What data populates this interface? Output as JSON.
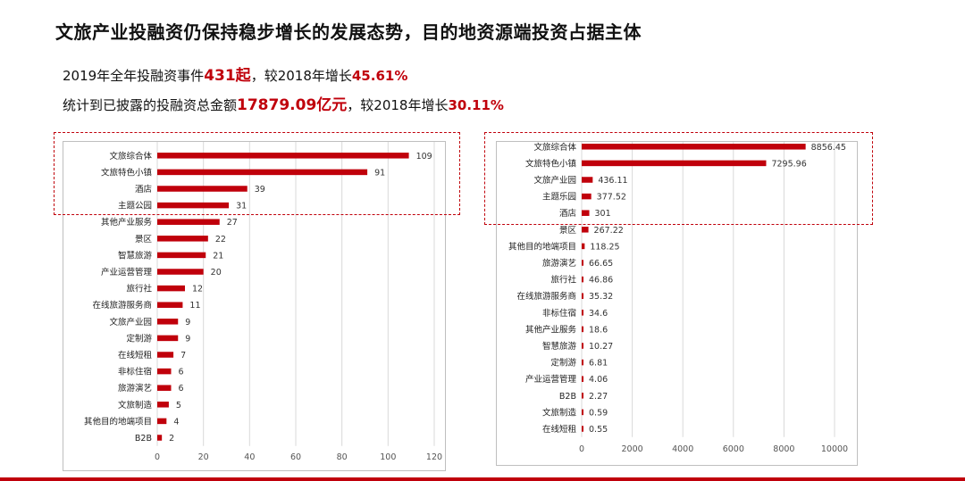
{
  "title": "文旅产业投融资仍保持稳步增长的发展态势，目的地资源端投资占据主体",
  "stats": {
    "line1_prefix": "2019年全年投融资事件",
    "line1_value": "431起",
    "line1_mid": "，较2018年增长",
    "line1_growth": "45.61%",
    "line2_prefix": "统计到已披露的投融资总金额",
    "line2_value": "17879.09亿元",
    "line2_mid": "，较2018年增长",
    "line2_growth": "30.11%"
  },
  "colors": {
    "accent": "#c0000b",
    "grid": "#d9d9d9",
    "text": "#111111"
  },
  "chart_data": [
    {
      "type": "bar",
      "orientation": "horizontal",
      "categories": [
        "文旅综合体",
        "文旅特色小镇",
        "酒店",
        "主题公园",
        "其他产业服务",
        "景区",
        "智慧旅游",
        "产业运营管理",
        "旅行社",
        "在线旅游服务商",
        "文旅产业园",
        "定制游",
        "在线短租",
        "非标住宿",
        "旅游演艺",
        "文旅制造",
        "其他目的地端项目",
        "B2B"
      ],
      "values": [
        109,
        91,
        39,
        31,
        27,
        22,
        21,
        20,
        12,
        11,
        9,
        9,
        7,
        6,
        6,
        5,
        4,
        2
      ],
      "labels": [
        "109",
        "91",
        "39",
        "31",
        "27",
        "22",
        "21",
        "20",
        "12",
        "11",
        "9",
        "9",
        "7",
        "6",
        "6",
        "5",
        "4",
        "2"
      ],
      "xlim": [
        0,
        120
      ],
      "xticks": [
        "0",
        "20",
        "40",
        "60",
        "80",
        "100",
        "120"
      ],
      "grid": true
    },
    {
      "type": "bar",
      "orientation": "horizontal",
      "categories": [
        "文旅综合体",
        "文旅特色小镇",
        "文旅产业园",
        "主题乐园",
        "酒店",
        "景区",
        "其他目的地端项目",
        "旅游演艺",
        "旅行社",
        "在线旅游服务商",
        "非标住宿",
        "其他产业服务",
        "智慧旅游",
        "定制游",
        "产业运营管理",
        "B2B",
        "文旅制造",
        "在线短租"
      ],
      "values": [
        8856.45,
        7295.96,
        436.11,
        377.52,
        301,
        267.22,
        118.25,
        66.65,
        46.86,
        35.32,
        34.6,
        18.6,
        10.27,
        6.81,
        4.06,
        2.27,
        0.59,
        0.55
      ],
      "labels": [
        "8856.45",
        "7295.96",
        "436.11",
        "377.52",
        "301",
        "267.22",
        "118.25",
        "66.65",
        "46.86",
        "35.32",
        "34.6",
        "18.6",
        "10.27",
        "6.81",
        "4.06",
        "2.27",
        "0.59",
        "0.55"
      ],
      "xlim": [
        0,
        10000
      ],
      "xticks": [
        "0",
        "2000",
        "4000",
        "6000",
        "8000",
        "10000"
      ],
      "grid": true
    }
  ]
}
